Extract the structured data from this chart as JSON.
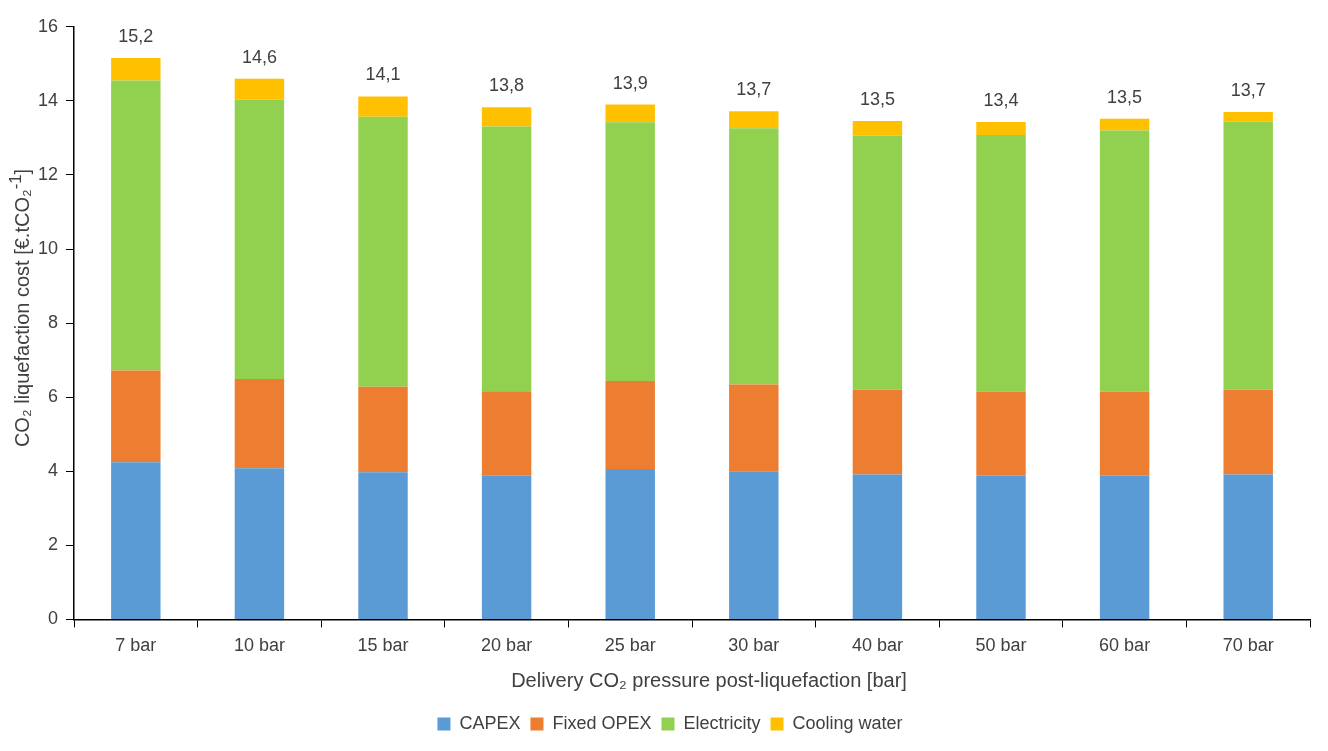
{
  "chart_data": {
    "type": "bar",
    "stacked": true,
    "xlabel": "Delivery CO₂ pressure post-liquefaction [bar]",
    "ylabel": "CO₂ liquefaction cost [€.tCO₂$^{-1}$]",
    "categories": [
      "7 bar",
      "10 bar",
      "15 bar",
      "20 bar",
      "25 bar",
      "30 bar",
      "40 bar",
      "50 bar",
      "60 bar",
      "70 bar"
    ],
    "series": [
      {
        "name": "CAPEX",
        "color": "#5b9bd5",
        "values": [
          4.24,
          4.08,
          3.97,
          3.88,
          4.06,
          4.0,
          3.91,
          3.88,
          3.88,
          3.91
        ]
      },
      {
        "name": "Fixed OPEX",
        "color": "#ed7d31",
        "values": [
          2.48,
          2.41,
          2.31,
          2.28,
          2.38,
          2.34,
          2.29,
          2.27,
          2.27,
          2.29
        ]
      },
      {
        "name": "Electricity",
        "color": "#92d050",
        "values": [
          7.83,
          7.55,
          7.29,
          7.15,
          6.98,
          6.92,
          6.86,
          6.93,
          7.05,
          7.24
        ]
      },
      {
        "name": "Cooling water",
        "color": "#ffc000",
        "values": [
          0.61,
          0.56,
          0.55,
          0.52,
          0.48,
          0.46,
          0.4,
          0.35,
          0.32,
          0.26
        ]
      }
    ],
    "totals": [
      "15,2",
      "14,6",
      "14,1",
      "13,8",
      "13,9",
      "13,7",
      "13,5",
      "13,4",
      "13,5",
      "13,7"
    ],
    "ylim": [
      0,
      16
    ],
    "yticks": [
      0,
      2,
      4,
      6,
      8,
      10,
      12,
      14,
      16
    ],
    "legend": "bottom"
  }
}
